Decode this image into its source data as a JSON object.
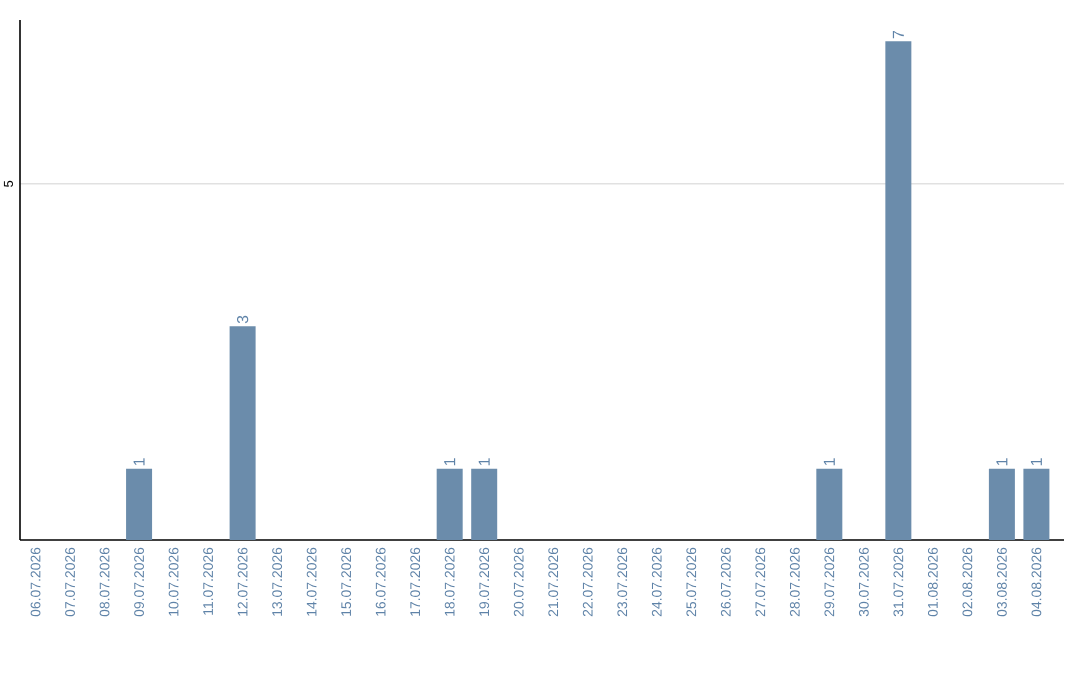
{
  "chart_data": {
    "type": "bar",
    "categories": [
      "06.07.2026",
      "07.07.2026",
      "08.07.2026",
      "09.07.2026",
      "10.07.2026",
      "11.07.2026",
      "12.07.2026",
      "13.07.2026",
      "14.07.2026",
      "15.07.2026",
      "16.07.2026",
      "17.07.2026",
      "18.07.2026",
      "19.07.2026",
      "20.07.2026",
      "21.07.2026",
      "22.07.2026",
      "23.07.2026",
      "24.07.2026",
      "25.07.2026",
      "26.07.2026",
      "27.07.2026",
      "28.07.2026",
      "29.07.2026",
      "30.07.2026",
      "31.07.2026",
      "01.08.2026",
      "02.08.2026",
      "03.08.2026",
      "04.08.2026"
    ],
    "values": [
      0,
      0,
      0,
      1,
      0,
      0,
      3,
      0,
      0,
      0,
      0,
      0,
      1,
      1,
      0,
      0,
      0,
      0,
      0,
      0,
      0,
      0,
      0,
      1,
      0,
      7,
      0,
      0,
      1,
      1
    ],
    "value_labels": [
      null,
      null,
      null,
      "1",
      null,
      null,
      "3",
      null,
      null,
      null,
      null,
      null,
      "1",
      "1",
      null,
      null,
      null,
      null,
      null,
      null,
      null,
      null,
      null,
      "1",
      null,
      "7",
      null,
      null,
      "1",
      "1"
    ],
    "color": "#6b8cab",
    "ylim": [
      0,
      7.3
    ],
    "yticks": [
      5
    ],
    "grid": "y"
  }
}
